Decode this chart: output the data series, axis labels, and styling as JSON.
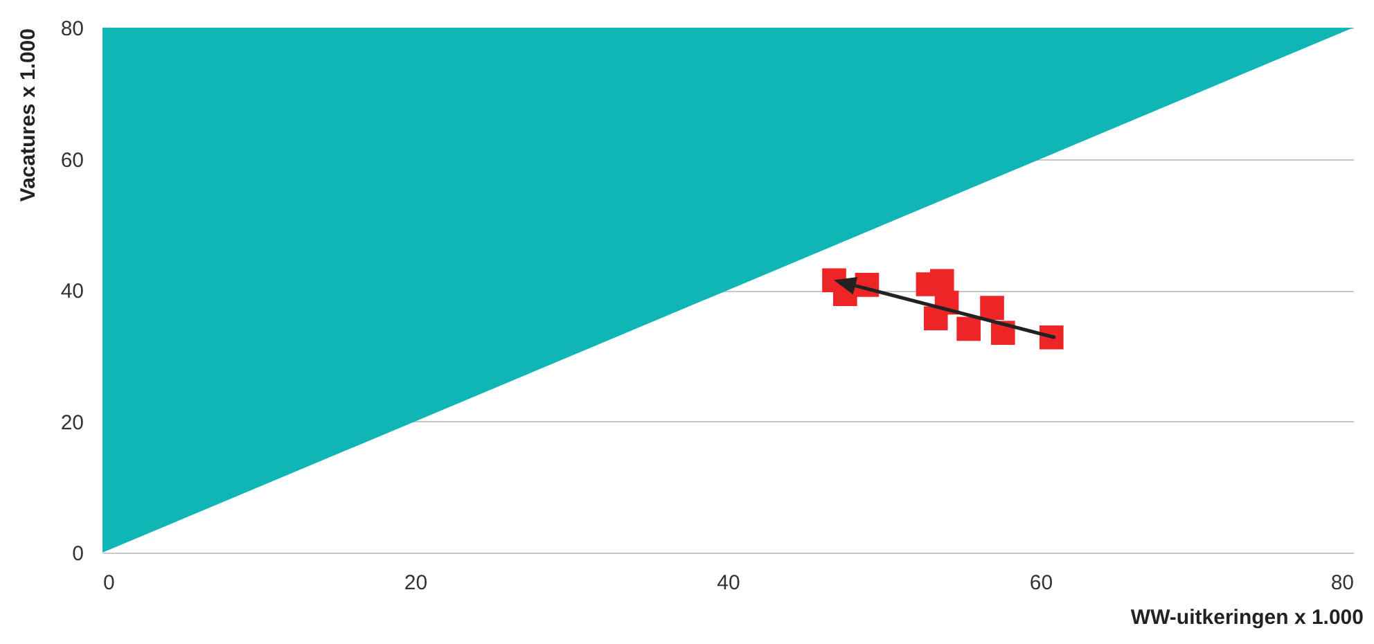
{
  "chart_data": {
    "type": "scatter",
    "xlabel": "WW-uitkeringen x 1.000",
    "ylabel": "Vacatures x 1.000",
    "xlim": [
      0,
      80
    ],
    "ylim": [
      0,
      80
    ],
    "xticks": [
      0,
      20,
      40,
      60,
      80
    ],
    "yticks": [
      0,
      20,
      40,
      60,
      80
    ],
    "grid": "y",
    "series": [
      {
        "type": "area",
        "color": "#10b5b6",
        "marker": "none",
        "x": [
          0,
          80
        ],
        "values": [
          0,
          80
        ]
      },
      {
        "marker": "square",
        "color": "#ee2526",
        "x": [
          46.8,
          47.5,
          48.9,
          52.8,
          53.7,
          54.0,
          53.3,
          55.4,
          56.9,
          57.6,
          60.7
        ],
        "values": [
          41.5,
          39.4,
          40.8,
          40.9,
          41.4,
          38.1,
          35.7,
          34.1,
          37.3,
          33.5,
          32.8
        ]
      }
    ]
  }
}
